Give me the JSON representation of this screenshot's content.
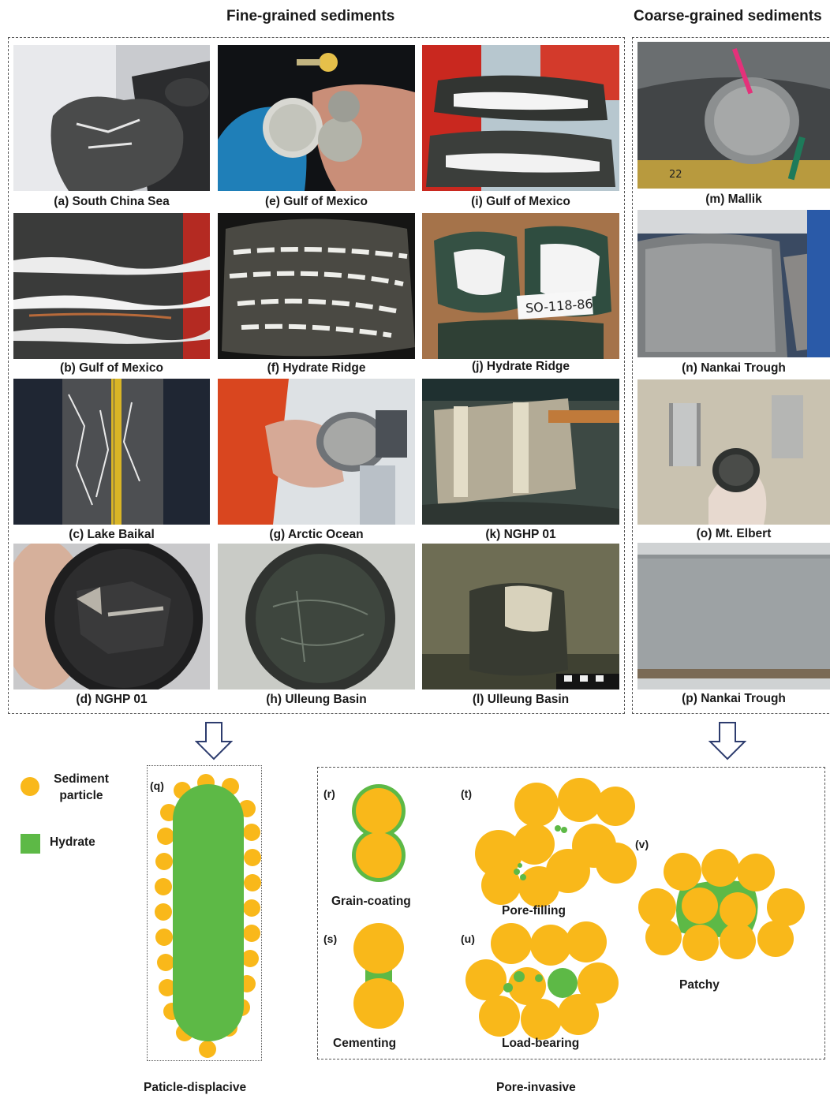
{
  "headings": {
    "fine": "Fine-grained sediments",
    "coarse": "Coarse-grained sediments"
  },
  "photos": [
    {
      "caption": "(a) South China Sea"
    },
    {
      "caption": "(b) Gulf of Mexico"
    },
    {
      "caption": "(c) Lake Baikal"
    },
    {
      "caption": "(d) NGHP 01"
    },
    {
      "caption": "(e) Gulf of Mexico"
    },
    {
      "caption": "(f) Hydrate Ridge"
    },
    {
      "caption": "(g) Arctic Ocean"
    },
    {
      "caption": "(h) Ulleung Basin"
    },
    {
      "caption": "(i) Gulf of Mexico"
    },
    {
      "caption": "(j) Hydrate Ridge"
    },
    {
      "caption": "(k) NGHP 01"
    },
    {
      "caption": "(l) Ulleung Basin"
    },
    {
      "caption": "(m) Mallik"
    },
    {
      "caption": "(n) Nankai Trough"
    },
    {
      "caption": "(o) Mt. Elbert"
    },
    {
      "caption": "(p) Nankai Trough"
    }
  ],
  "photo_texts": {
    "sample_tag": "SO-118-86",
    "ruler_number": "22"
  },
  "legend": {
    "sediment": "Sediment particle",
    "hydrate": "Hydrate",
    "sediment_color": "#F9B81A",
    "hydrate_color": "#5DB946"
  },
  "diagrams": {
    "q": "(q)",
    "r": "(r)",
    "s": "(s)",
    "t": "(t)",
    "u": "(u)",
    "v": "(v)",
    "grain_coating": "Grain-coating",
    "cementing": "Cementing",
    "pore_filling": "Pore-filling",
    "load_bearing": "Load-bearing",
    "patchy": "Patchy",
    "particle_displacive": "Paticle-displacive",
    "pore_invasive": "Pore-invasive"
  }
}
